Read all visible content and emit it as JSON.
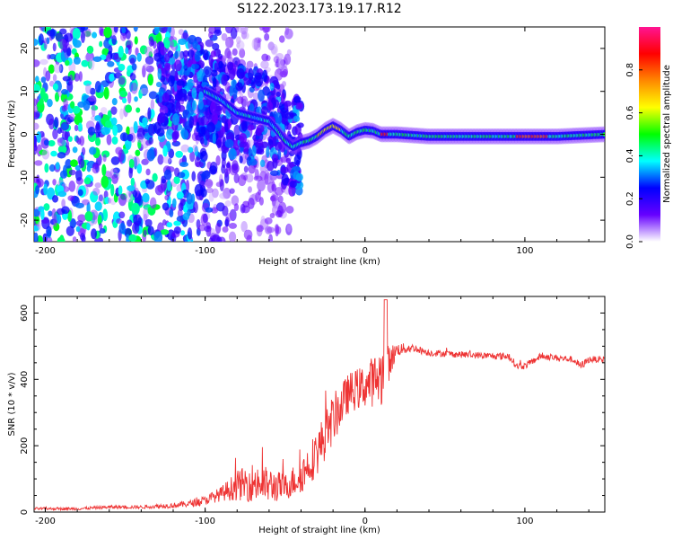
{
  "title": "S122.2023.173.19.17.R12",
  "chart_data": [
    {
      "type": "heatmap",
      "title": "S122.2023.173.19.17.R12",
      "xlabel": "Height of straight line (km)",
      "ylabel": "Frequency (Hz)",
      "xlim": [
        -207,
        150
      ],
      "ylim": [
        -25,
        25
      ],
      "x_ticks": [
        -200,
        -100,
        0,
        100
      ],
      "y_ticks": [
        -20,
        -10,
        0,
        10,
        20
      ],
      "colorbar": {
        "label": "Normalized spectral amplitude",
        "range": [
          0.0,
          1.0
        ],
        "ticks": [
          0.0,
          0.2,
          0.4,
          0.6,
          0.8
        ],
        "tick_labels": [
          "0.0",
          "0.2",
          "0.4",
          "0.6",
          "0.8"
        ],
        "colors": [
          "#ffffff",
          "#6600ff",
          "#0000ff",
          "#00ffff",
          "#00ff00",
          "#ffff00",
          "#ff8800",
          "#ff0000",
          "#ff1493"
        ]
      },
      "ridge_centerline": {
        "x": [
          -100,
          -90,
          -80,
          -70,
          -60,
          -55,
          -50,
          -45,
          -40,
          -35,
          -30,
          -25,
          -20,
          -15,
          -10,
          -5,
          0,
          5,
          10,
          20,
          40,
          60,
          80,
          100,
          120,
          150
        ],
        "y": [
          10,
          8,
          5,
          4,
          3,
          1,
          -1.5,
          -3,
          -2,
          -1.5,
          -0.5,
          1,
          2,
          1,
          -0.5,
          0.5,
          1,
          0.8,
          0,
          0,
          -0.5,
          -0.5,
          -0.5,
          -0.5,
          -0.5,
          0
        ]
      },
      "grid": false
    },
    {
      "type": "line",
      "xlabel": "Height of straight line (km)",
      "ylabel": "SNR (10 * v/v)",
      "xlim": [
        -207,
        150
      ],
      "ylim": [
        0,
        650
      ],
      "x_ticks": [
        -200,
        -100,
        0,
        100
      ],
      "y_ticks": [
        0,
        200,
        400,
        600
      ],
      "series": [
        {
          "color": "#ee3333",
          "x": [
            -207,
            -180,
            -160,
            -140,
            -120,
            -110,
            -100,
            -90,
            -80,
            -70,
            -60,
            -50,
            -40,
            -30,
            -20,
            -10,
            0,
            10,
            20,
            30,
            40,
            60,
            80,
            90,
            95,
            100,
            110,
            120,
            130,
            135,
            140,
            150
          ],
          "y": [
            10,
            10,
            15,
            15,
            20,
            25,
            35,
            55,
            80,
            90,
            80,
            75,
            110,
            180,
            280,
            360,
            380,
            410,
            490,
            495,
            480,
            475,
            470,
            470,
            440,
            440,
            470,
            465,
            460,
            440,
            460,
            460
          ],
          "noise": [
            4,
            4,
            5,
            5,
            8,
            10,
            14,
            22,
            45,
            60,
            55,
            40,
            55,
            70,
            75,
            60,
            65,
            90,
            20,
            12,
            10,
            10,
            10,
            12,
            10,
            10,
            10,
            10,
            10,
            12,
            10,
            10
          ]
        }
      ],
      "grid": false
    }
  ]
}
